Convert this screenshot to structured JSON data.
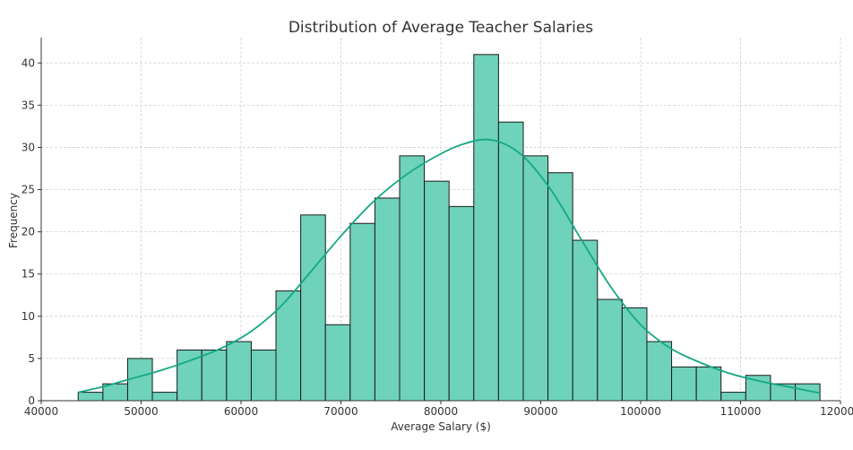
{
  "chart_data": {
    "type": "bar",
    "title": "Distribution of Average Teacher Salaries",
    "xlabel": "Average Salary ($)",
    "ylabel": "Frequency",
    "xlim": [
      40000,
      120000
    ],
    "ylim": [
      0,
      43
    ],
    "x_ticks": [
      40000,
      50000,
      60000,
      70000,
      80000,
      90000,
      100000,
      110000,
      120000
    ],
    "y_ticks": [
      0,
      5,
      10,
      15,
      20,
      25,
      30,
      35,
      40
    ],
    "grid": true,
    "bin_start": 43700,
    "bin_width": 2475,
    "bins": [
      {
        "left": 43700,
        "right": 46175,
        "count": 1
      },
      {
        "left": 46175,
        "right": 48650,
        "count": 2
      },
      {
        "left": 48650,
        "right": 51125,
        "count": 5
      },
      {
        "left": 51125,
        "right": 53600,
        "count": 1
      },
      {
        "left": 53600,
        "right": 56075,
        "count": 6
      },
      {
        "left": 56075,
        "right": 58550,
        "count": 6
      },
      {
        "left": 58550,
        "right": 61025,
        "count": 7
      },
      {
        "left": 61025,
        "right": 63500,
        "count": 6
      },
      {
        "left": 63500,
        "right": 65975,
        "count": 13
      },
      {
        "left": 65975,
        "right": 68450,
        "count": 22
      },
      {
        "left": 68450,
        "right": 70925,
        "count": 9
      },
      {
        "left": 70925,
        "right": 73400,
        "count": 21
      },
      {
        "left": 73400,
        "right": 75875,
        "count": 24
      },
      {
        "left": 75875,
        "right": 78350,
        "count": 29
      },
      {
        "left": 78350,
        "right": 80825,
        "count": 26
      },
      {
        "left": 80825,
        "right": 83300,
        "count": 23
      },
      {
        "left": 83300,
        "right": 85775,
        "count": 41
      },
      {
        "left": 85775,
        "right": 88250,
        "count": 33
      },
      {
        "left": 88250,
        "right": 90725,
        "count": 29
      },
      {
        "left": 90725,
        "right": 93200,
        "count": 27
      },
      {
        "left": 93200,
        "right": 95675,
        "count": 19
      },
      {
        "left": 95675,
        "right": 98150,
        "count": 12
      },
      {
        "left": 98150,
        "right": 100625,
        "count": 11
      },
      {
        "left": 100625,
        "right": 103100,
        "count": 7
      },
      {
        "left": 103100,
        "right": 105575,
        "count": 4
      },
      {
        "left": 105575,
        "right": 108050,
        "count": 4
      },
      {
        "left": 108050,
        "right": 110525,
        "count": 1
      },
      {
        "left": 110525,
        "right": 113000,
        "count": 3
      },
      {
        "left": 113000,
        "right": 115475,
        "count": 2
      },
      {
        "left": 115475,
        "right": 117950,
        "count": 2
      }
    ],
    "kde": {
      "x": [
        43700,
        46000,
        49000,
        52000,
        55000,
        58000,
        61000,
        64000,
        67000,
        70000,
        73000,
        76000,
        79000,
        82000,
        85000,
        88000,
        91000,
        94000,
        97000,
        100000,
        103000,
        106000,
        109000,
        112000,
        115000,
        117950
      ],
      "y": [
        1.0,
        1.6,
        2.6,
        3.6,
        4.8,
        6.2,
        8.2,
        11.2,
        15.3,
        19.5,
        23.3,
        26.3,
        28.6,
        30.3,
        30.9,
        29.2,
        25.0,
        19.2,
        13.5,
        9.0,
        6.2,
        4.5,
        3.2,
        2.3,
        1.6,
        0.9
      ]
    },
    "colors": {
      "bar_fill": "#6fd2bb",
      "bar_edge": "#1a1a1a",
      "kde_line": "#14a884"
    }
  }
}
